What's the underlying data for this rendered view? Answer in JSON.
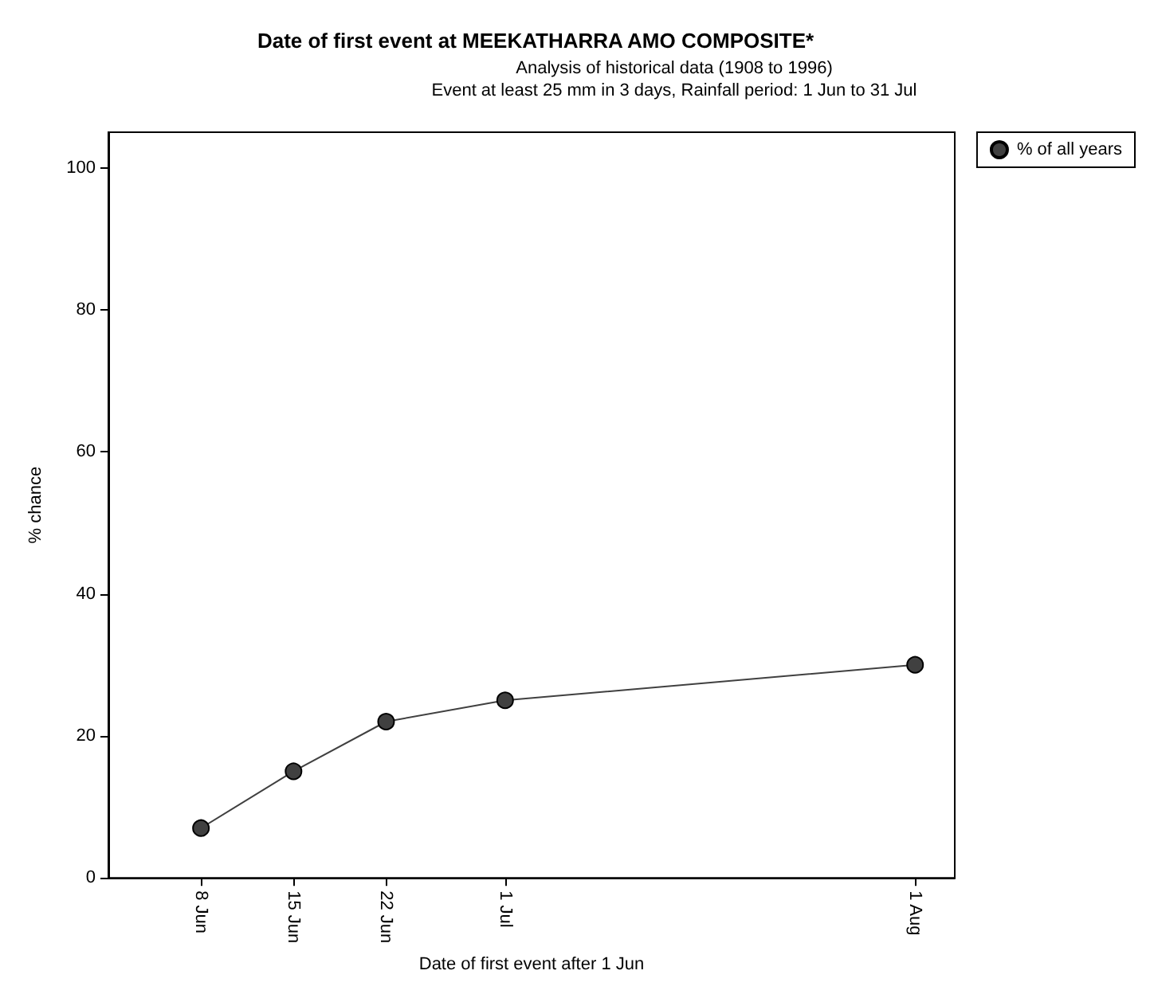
{
  "chart_data": {
    "type": "line",
    "title": "Date of first event at MEEKATHARRA AMO COMPOSITE*",
    "subtitle": "Analysis of historical data (1908 to 1996)\nEvent at least 25 mm in 3 days, Rainfall period: 1 Jun to 31 Jul",
    "xlabel": "Date of first event after 1 Jun",
    "ylabel": "% chance",
    "x": [
      "--06-08",
      "--06-15",
      "--06-22",
      "--07-01",
      "--08-01"
    ],
    "series": [
      {
        "name": "% of all years",
        "color": "#404040",
        "values": [
          7,
          15,
          22,
          25,
          30
        ]
      }
    ],
    "xlim": [
      "--06-01",
      "--08-04"
    ],
    "xticks": [
      {
        "value": "--06-08",
        "label": "8 Jun"
      },
      {
        "value": "--06-15",
        "label": "15 Jun"
      },
      {
        "value": "--06-22",
        "label": "22 Jun"
      },
      {
        "value": "--07-01",
        "label": "1 Jul"
      },
      {
        "value": "--08-01",
        "label": "1 Aug"
      }
    ],
    "ylim": [
      0,
      105
    ],
    "yticks": [
      0,
      20,
      40,
      60,
      80,
      100
    ],
    "grid": false,
    "legend": "top right",
    "marker": "circle",
    "line_style": "solid"
  }
}
